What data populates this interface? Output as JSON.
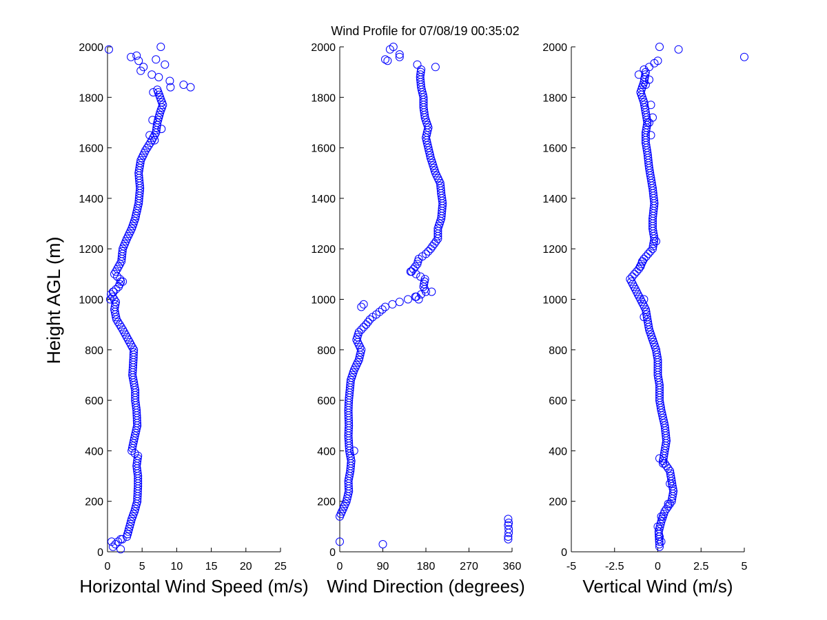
{
  "chart_data": {
    "type": "scatter",
    "title": "Wind Profile for  07/08/19 00:35:02",
    "ylabel": "Height AGL (m)",
    "ylim": [
      0,
      2000
    ],
    "yticks": [
      0,
      200,
      400,
      600,
      800,
      1000,
      1200,
      1400,
      1600,
      1800,
      2000
    ],
    "color": "#0000ff",
    "panels": [
      {
        "key": "speed",
        "xlabel": "Horizontal Wind Speed (m/s)",
        "xlim": [
          0,
          25
        ],
        "xticks": [
          0,
          5,
          10,
          15,
          20,
          25
        ],
        "xtick_labels": [
          "0",
          "5",
          "10",
          "15",
          "20",
          "25"
        ],
        "profile": [
          [
            0,
            3
          ],
          [
            20,
            0.8
          ],
          [
            40,
            1.5
          ],
          [
            60,
            2.8
          ],
          [
            80,
            3.0
          ],
          [
            100,
            3.2
          ],
          [
            130,
            3.5
          ],
          [
            160,
            3.9
          ],
          [
            200,
            4.3
          ],
          [
            260,
            4.4
          ],
          [
            300,
            4.4
          ],
          [
            340,
            4.2
          ],
          [
            380,
            4.4
          ],
          [
            400,
            3.5
          ],
          [
            440,
            3.8
          ],
          [
            500,
            4.3
          ],
          [
            560,
            4.2
          ],
          [
            600,
            4.0
          ],
          [
            640,
            4.0
          ],
          [
            700,
            3.6
          ],
          [
            740,
            3.7
          ],
          [
            800,
            3.8
          ],
          [
            840,
            3.0
          ],
          [
            880,
            2.2
          ],
          [
            920,
            1.3
          ],
          [
            960,
            1.0
          ],
          [
            990,
            1.2
          ],
          [
            1020,
            0.5
          ],
          [
            1050,
            1.6
          ],
          [
            1075,
            2.0
          ],
          [
            1100,
            1.0
          ],
          [
            1150,
            2.0
          ],
          [
            1200,
            2.2
          ],
          [
            1240,
            2.8
          ],
          [
            1280,
            3.5
          ],
          [
            1320,
            4.0
          ],
          [
            1380,
            4.5
          ],
          [
            1440,
            4.7
          ],
          [
            1500,
            4.5
          ],
          [
            1550,
            4.8
          ],
          [
            1590,
            5.5
          ],
          [
            1620,
            6.2
          ],
          [
            1660,
            7.0
          ],
          [
            1700,
            7.2
          ],
          [
            1740,
            7.6
          ],
          [
            1770,
            8.0
          ],
          [
            1800,
            7.6
          ],
          [
            1830,
            7.2
          ],
          [
            1850,
            11.0
          ]
        ],
        "outliers": [
          [
            1990,
            0.2
          ],
          [
            1960,
            3.4
          ],
          [
            1965,
            4.2
          ],
          [
            1945,
            4.5
          ],
          [
            2000,
            7.7
          ],
          [
            1950,
            7.0
          ],
          [
            1930,
            8.3
          ],
          [
            1920,
            5.2
          ],
          [
            1905,
            4.8
          ],
          [
            1890,
            6.4
          ],
          [
            1880,
            7.4
          ],
          [
            1865,
            9.0
          ],
          [
            1840,
            12.0
          ],
          [
            1820,
            6.6
          ],
          [
            1675,
            7.8
          ],
          [
            1630,
            6.8
          ],
          [
            1710,
            6.5
          ],
          [
            1650,
            6.1
          ],
          [
            1070,
            2.2
          ],
          [
            1030,
            0.8
          ],
          [
            1000,
            0.4
          ],
          [
            40,
            0.6
          ],
          [
            50,
            1.9
          ],
          [
            70,
            2.9
          ]
        ]
      },
      {
        "key": "direction",
        "xlabel": "Wind Direction (degrees)",
        "xlim": [
          0,
          360
        ],
        "xticks": [
          0,
          90,
          180,
          270,
          360
        ],
        "xtick_labels": [
          "0",
          "90",
          "180",
          "270",
          "360"
        ],
        "profile": [
          [
            140,
            0
          ],
          [
            170,
            7
          ],
          [
            200,
            14
          ],
          [
            240,
            19
          ],
          [
            280,
            18
          ],
          [
            320,
            22
          ],
          [
            360,
            24
          ],
          [
            400,
            20
          ],
          [
            460,
            18
          ],
          [
            500,
            19
          ],
          [
            560,
            18
          ],
          [
            600,
            19
          ],
          [
            640,
            21
          ],
          [
            680,
            23
          ],
          [
            720,
            30
          ],
          [
            760,
            40
          ],
          [
            800,
            45
          ],
          [
            840,
            35
          ],
          [
            870,
            40
          ],
          [
            900,
            55
          ],
          [
            925,
            65
          ],
          [
            945,
            80
          ],
          [
            970,
            95
          ],
          [
            990,
            125
          ],
          [
            1010,
            160
          ],
          [
            1030,
            180
          ],
          [
            1050,
            175
          ],
          [
            1080,
            178
          ],
          [
            1110,
            150
          ],
          [
            1140,
            162
          ],
          [
            1160,
            165
          ],
          [
            1180,
            180
          ],
          [
            1200,
            190
          ],
          [
            1240,
            205
          ],
          [
            1280,
            205
          ],
          [
            1320,
            212
          ],
          [
            1380,
            215
          ],
          [
            1420,
            212
          ],
          [
            1460,
            210
          ],
          [
            1500,
            200
          ],
          [
            1560,
            190
          ],
          [
            1600,
            185
          ],
          [
            1640,
            180
          ],
          [
            1680,
            185
          ],
          [
            1720,
            178
          ],
          [
            1760,
            175
          ],
          [
            1800,
            175
          ],
          [
            1840,
            170
          ],
          [
            1880,
            168
          ],
          [
            1910,
            170
          ]
        ],
        "outliers": [
          [
            30,
            90
          ],
          [
            40,
            0
          ],
          [
            400,
            30
          ],
          [
            970,
            45
          ],
          [
            980,
            50
          ],
          [
            1000,
            165
          ],
          [
            1010,
            158
          ],
          [
            1030,
            192
          ],
          [
            1110,
            148
          ],
          [
            1920,
            200
          ],
          [
            1930,
            162
          ],
          [
            1945,
            100
          ],
          [
            1950,
            95
          ],
          [
            1960,
            125
          ],
          [
            1970,
            125
          ],
          [
            1990,
            105
          ],
          [
            2000,
            112
          ],
          [
            50,
            352
          ],
          [
            60,
            352
          ],
          [
            75,
            353
          ],
          [
            90,
            353
          ],
          [
            105,
            352
          ],
          [
            115,
            353
          ],
          [
            130,
            352
          ]
        ]
      },
      {
        "key": "vertical",
        "xlabel": "Vertical Wind (m/s)",
        "xlim": [
          -5,
          5
        ],
        "xticks": [
          -5,
          -2.5,
          0,
          2.5,
          5
        ],
        "xtick_labels": [
          "-5",
          "-2.5",
          "0",
          "2.5",
          "5"
        ],
        "profile": [
          [
            20,
            0.1
          ],
          [
            80,
            0.05
          ],
          [
            120,
            0.2
          ],
          [
            160,
            0.4
          ],
          [
            200,
            0.8
          ],
          [
            240,
            0.9
          ],
          [
            280,
            0.8
          ],
          [
            320,
            0.7
          ],
          [
            360,
            0.3
          ],
          [
            400,
            0.4
          ],
          [
            440,
            0.5
          ],
          [
            500,
            0.4
          ],
          [
            560,
            0.2
          ],
          [
            600,
            0.1
          ],
          [
            660,
            0.1
          ],
          [
            700,
            0.0
          ],
          [
            760,
            0.0
          ],
          [
            800,
            -0.1
          ],
          [
            840,
            -0.3
          ],
          [
            880,
            -0.5
          ],
          [
            920,
            -0.6
          ],
          [
            960,
            -0.7
          ],
          [
            1000,
            -1.0
          ],
          [
            1040,
            -1.3
          ],
          [
            1080,
            -1.6
          ],
          [
            1120,
            -1.1
          ],
          [
            1160,
            -0.8
          ],
          [
            1200,
            -0.3
          ],
          [
            1240,
            -0.2
          ],
          [
            1280,
            -0.3
          ],
          [
            1320,
            -0.3
          ],
          [
            1380,
            -0.2
          ],
          [
            1440,
            -0.3
          ],
          [
            1480,
            -0.4
          ],
          [
            1520,
            -0.5
          ],
          [
            1580,
            -0.6
          ],
          [
            1620,
            -0.7
          ],
          [
            1660,
            -0.7
          ],
          [
            1700,
            -0.6
          ],
          [
            1740,
            -0.7
          ],
          [
            1780,
            -0.8
          ],
          [
            1820,
            -1.0
          ],
          [
            1860,
            -0.8
          ],
          [
            1900,
            -0.7
          ]
        ],
        "outliers": [
          [
            1960,
            5.0
          ],
          [
            1990,
            1.2
          ],
          [
            2000,
            0.1
          ],
          [
            1945,
            0.0
          ],
          [
            1935,
            -0.2
          ],
          [
            1920,
            -0.5
          ],
          [
            1910,
            -0.8
          ],
          [
            1890,
            -1.1
          ],
          [
            1870,
            -0.5
          ],
          [
            1850,
            -0.7
          ],
          [
            1770,
            -0.4
          ],
          [
            1720,
            -0.3
          ],
          [
            1700,
            -0.5
          ],
          [
            1650,
            -0.4
          ],
          [
            1230,
            -0.1
          ],
          [
            1150,
            -0.9
          ],
          [
            1130,
            -1.0
          ],
          [
            1000,
            -0.8
          ],
          [
            930,
            -0.8
          ],
          [
            370,
            0.1
          ],
          [
            350,
            0.3
          ],
          [
            270,
            0.7
          ],
          [
            190,
            0.6
          ],
          [
            140,
            0.2
          ],
          [
            100,
            0.0
          ],
          [
            60,
            0.1
          ],
          [
            40,
            0.2
          ]
        ]
      }
    ]
  }
}
